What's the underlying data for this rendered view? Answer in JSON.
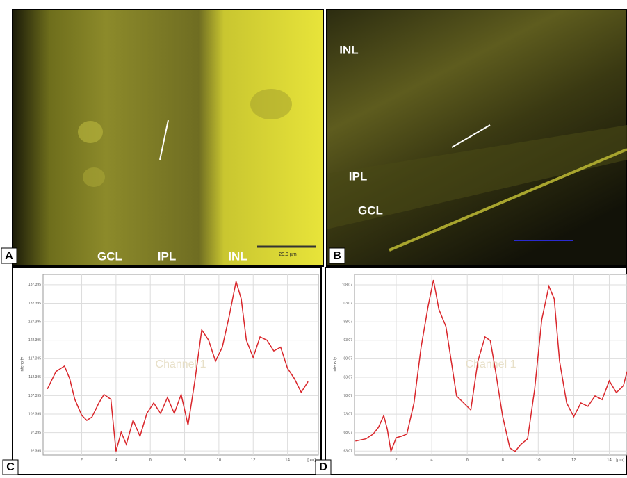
{
  "panels": [
    {
      "label": "A",
      "annotations": [
        "GCL",
        "IPL",
        "INL"
      ],
      "scale_bar": "20.0 µm"
    },
    {
      "label": "B",
      "annotations": [
        "INL",
        "IPL",
        "GCL"
      ]
    }
  ],
  "chart_data": [
    {
      "type": "line",
      "panel_label": "C",
      "ylabel": "Intensity",
      "xunit": "[µm]",
      "watermark": "Channel 1",
      "color": "#d9262b",
      "grid": true,
      "xlim": [
        -0.25,
        15.8
      ],
      "xticks": [
        2,
        4,
        6,
        8,
        10,
        12,
        14
      ],
      "ylim": [
        91.3,
        140.2
      ],
      "yticks": [
        137.395,
        132.395,
        127.395,
        122.395,
        117.395,
        112.395,
        107.395,
        102.395,
        97.395,
        92.395
      ],
      "x": [
        0,
        0.5,
        1,
        1.3,
        1.6,
        2,
        2.3,
        2.6,
        3,
        3.3,
        3.7,
        4,
        4.3,
        4.6,
        5,
        5.4,
        5.8,
        6.2,
        6.6,
        7,
        7.4,
        7.8,
        8.2,
        8.6,
        9,
        9.4,
        9.8,
        10.2,
        10.6,
        11,
        11.3,
        11.6,
        12,
        12.4,
        12.8,
        13.2,
        13.6,
        14,
        14.4,
        14.8,
        15.2
      ],
      "values": [
        109.2,
        113.9,
        115.4,
        112.0,
        106.4,
        102.1,
        100.7,
        101.6,
        105.4,
        107.7,
        106.4,
        92.3,
        97.5,
        94.2,
        100.7,
        96.4,
        102.6,
        105.4,
        102.6,
        106.9,
        102.6,
        107.7,
        99.4,
        111.5,
        125.2,
        122.4,
        116.7,
        120.5,
        128.9,
        138.3,
        133.6,
        122.4,
        117.7,
        123.3,
        122.4,
        119.5,
        120.5,
        114.8,
        112.0,
        108.3,
        111.2
      ]
    },
    {
      "type": "line",
      "panel_label": "D",
      "ylabel": "Intensity",
      "xunit": "[µm]",
      "watermark": "Channel 1",
      "color": "#d9262b",
      "grid": true,
      "xlim": [
        -0.35,
        15
      ],
      "xticks": [
        2,
        4,
        6,
        8,
        10,
        12,
        14
      ],
      "ylim": [
        62.0,
        110.9
      ],
      "yticks": [
        108.07,
        103.07,
        98.07,
        93.07,
        88.07,
        83.07,
        78.07,
        73.07,
        68.07,
        63.07
      ],
      "x": [
        -0.3,
        0.3,
        0.7,
        1,
        1.3,
        1.5,
        1.7,
        2,
        2.3,
        2.6,
        3,
        3.4,
        3.8,
        4.1,
        4.4,
        4.8,
        5.1,
        5.4,
        5.8,
        6.2,
        6.6,
        7,
        7.3,
        7.6,
        8,
        8.4,
        8.7,
        9,
        9.4,
        9.8,
        10.2,
        10.6,
        10.9,
        11.2,
        11.6,
        12,
        12.4,
        12.8,
        13.2,
        13.6,
        14,
        14.4,
        14.8,
        15
      ],
      "values": [
        65.8,
        66.4,
        67.7,
        69.5,
        72.7,
        69.0,
        63.0,
        66.7,
        67.1,
        67.7,
        76.1,
        91.2,
        102.4,
        109.4,
        101.5,
        96.8,
        87.4,
        78.0,
        76.1,
        74.2,
        87.4,
        94.0,
        93.0,
        84.6,
        72.4,
        63.9,
        63.0,
        64.8,
        66.4,
        79.9,
        98.7,
        107.7,
        104.3,
        87.4,
        76.1,
        72.4,
        76.1,
        75.2,
        78.0,
        77.0,
        82.1,
        78.9,
        80.8,
        84.6
      ]
    }
  ]
}
